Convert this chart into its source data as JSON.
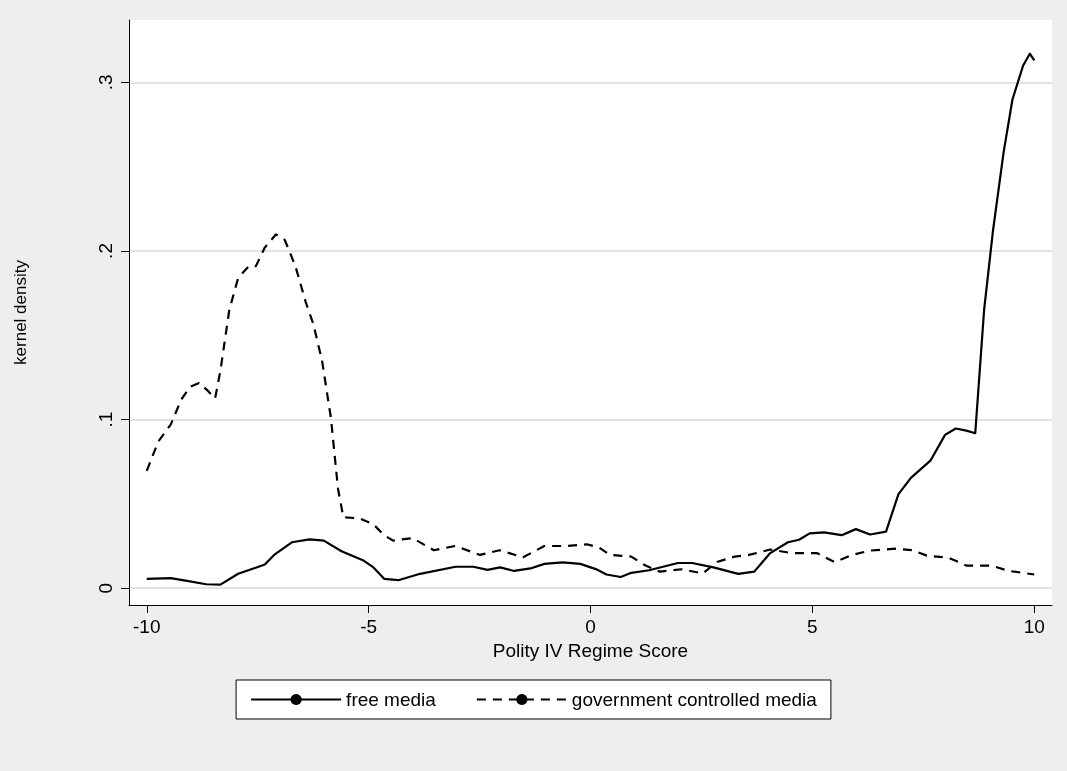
{
  "chart_data": {
    "type": "line",
    "xlabel": "Polity IV Regime Score",
    "ylabel": "kernel density",
    "xlim": [
      -10.4,
      10.4
    ],
    "xticks": [
      -10,
      -5,
      0,
      5,
      10
    ],
    "ylim": [
      -0.01,
      0.337
    ],
    "yticks": [
      {
        "value": 0,
        "label": "0"
      },
      {
        "value": 0.1,
        "label": ".1"
      },
      {
        "value": 0.2,
        "label": ".2"
      },
      {
        "value": 0.3,
        "label": ".3"
      }
    ],
    "grid": "y",
    "legend": "bottom",
    "series": [
      {
        "name": "free media",
        "color": "#000000",
        "line_style": "solid",
        "x": [
          -10,
          -9.46,
          -9.06,
          -8.66,
          -8.34,
          -7.94,
          -7.34,
          -7.13,
          -6.73,
          -6.33,
          -6.01,
          -5.61,
          -5.13,
          -4.89,
          -4.65,
          -4.33,
          -3.84,
          -3.04,
          -2.64,
          -2.32,
          -2.04,
          -1.72,
          -1.32,
          -1.04,
          -0.63,
          -0.23,
          0.12,
          0.36,
          0.68,
          0.92,
          1.32,
          1.97,
          2.29,
          2.77,
          3.33,
          3.69,
          4.05,
          4.45,
          4.7,
          4.94,
          5.26,
          5.66,
          5.98,
          6.3,
          6.66,
          6.94,
          7.22,
          7.66,
          7.99,
          8.23,
          8.47,
          8.67,
          8.87,
          9.07,
          9.31,
          9.51,
          9.75,
          9.9,
          10
        ],
        "values": [
          0.0055,
          0.0059,
          0.0042,
          0.0023,
          0.0021,
          0.0085,
          0.014,
          0.0197,
          0.0272,
          0.0289,
          0.0282,
          0.0219,
          0.0166,
          0.0123,
          0.0055,
          0.0047,
          0.0085,
          0.0127,
          0.0127,
          0.0108,
          0.0123,
          0.0102,
          0.0119,
          0.0144,
          0.0153,
          0.0144,
          0.0113,
          0.0081,
          0.0066,
          0.0091,
          0.0106,
          0.0149,
          0.0149,
          0.0123,
          0.0085,
          0.0098,
          0.0208,
          0.0272,
          0.0287,
          0.0325,
          0.0331,
          0.0314,
          0.035,
          0.0318,
          0.0335,
          0.0558,
          0.0654,
          0.0756,
          0.0909,
          0.0947,
          0.0934,
          0.0919,
          0.165,
          0.212,
          0.2586,
          0.29,
          0.31,
          0.317,
          0.313
        ]
      },
      {
        "name": "government controlled media",
        "color": "#000000",
        "line_style": "dashed",
        "x": [
          -10,
          -9.74,
          -9.46,
          -9.22,
          -9.02,
          -8.82,
          -8.62,
          -8.46,
          -8.34,
          -8.14,
          -7.94,
          -7.7,
          -7.54,
          -7.34,
          -7.09,
          -6.89,
          -6.65,
          -6.41,
          -6.25,
          -6.05,
          -5.85,
          -5.69,
          -5.57,
          -5.21,
          -4.89,
          -4.65,
          -4.45,
          -4.01,
          -3.53,
          -3.05,
          -2.49,
          -2.05,
          -1.52,
          -1.04,
          -0.56,
          -0.08,
          0.2,
          0.44,
          0.92,
          1.24,
          1.56,
          2.05,
          2.53,
          2.85,
          3.25,
          3.57,
          4.05,
          4.53,
          5.1,
          5.5,
          5.9,
          6.3,
          6.86,
          7.26,
          7.58,
          8.07,
          8.47,
          9.03,
          9.43,
          10
        ],
        "values": [
          0.0696,
          0.087,
          0.097,
          0.112,
          0.1195,
          0.1217,
          0.117,
          0.1125,
          0.129,
          0.165,
          0.184,
          0.191,
          0.191,
          0.202,
          0.2098,
          0.2066,
          0.191,
          0.169,
          0.157,
          0.135,
          0.101,
          0.059,
          0.042,
          0.0414,
          0.0378,
          0.0314,
          0.0282,
          0.0297,
          0.0225,
          0.025,
          0.0197,
          0.0225,
          0.0183,
          0.025,
          0.025,
          0.026,
          0.024,
          0.0197,
          0.0187,
          0.0134,
          0.0098,
          0.0112,
          0.0087,
          0.0155,
          0.0187,
          0.0197,
          0.0229,
          0.0208,
          0.0208,
          0.0155,
          0.0197,
          0.0223,
          0.0234,
          0.0225,
          0.0193,
          0.018,
          0.0134,
          0.0134,
          0.0102,
          0.0081
        ]
      }
    ]
  }
}
